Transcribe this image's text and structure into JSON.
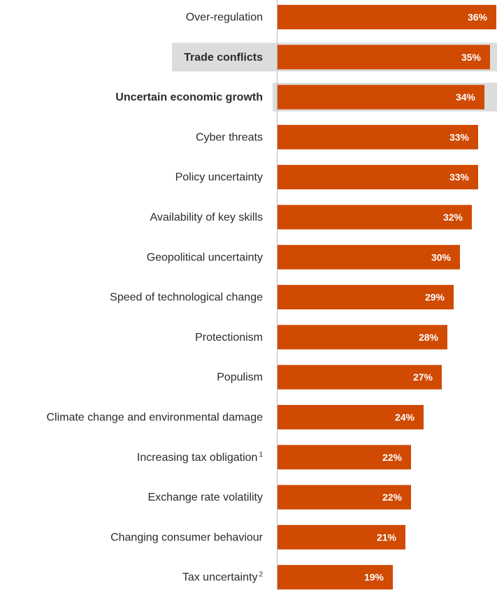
{
  "colors": {
    "bar": "#d04a02",
    "highlight": "#dcdcdc",
    "value_text": "#ffffff",
    "label_text": "#2b2b2b"
  },
  "chart_data": {
    "type": "bar",
    "orientation": "horizontal",
    "categories": [
      {
        "label": "Over-regulation",
        "sup": ""
      },
      {
        "label": "Trade conflicts",
        "sup": ""
      },
      {
        "label": "Uncertain economic growth",
        "sup": ""
      },
      {
        "label": "Cyber threats",
        "sup": ""
      },
      {
        "label": "Policy uncertainty",
        "sup": ""
      },
      {
        "label": "Availability of key skills",
        "sup": ""
      },
      {
        "label": "Geopolitical uncertainty",
        "sup": ""
      },
      {
        "label": "Speed of technological change",
        "sup": ""
      },
      {
        "label": "Protectionism",
        "sup": ""
      },
      {
        "label": "Populism",
        "sup": ""
      },
      {
        "label": "Climate change and environmental damage",
        "sup": ""
      },
      {
        "label": "Increasing tax obligation",
        "sup": "1"
      },
      {
        "label": "Exchange rate volatility",
        "sup": ""
      },
      {
        "label": "Changing consumer behaviour",
        "sup": ""
      },
      {
        "label": "Tax uncertainty",
        "sup": "2"
      }
    ],
    "values": [
      36,
      35,
      34,
      33,
      33,
      32,
      30,
      29,
      28,
      27,
      24,
      22,
      22,
      21,
      19
    ],
    "value_labels": [
      "36%",
      "35%",
      "34%",
      "33%",
      "33%",
      "32%",
      "30%",
      "29%",
      "28%",
      "27%",
      "24%",
      "22%",
      "22%",
      "21%",
      "19%"
    ],
    "highlighted": [
      "Trade conflicts",
      "Uncertain economic growth"
    ],
    "xlim": [
      0,
      36
    ]
  }
}
